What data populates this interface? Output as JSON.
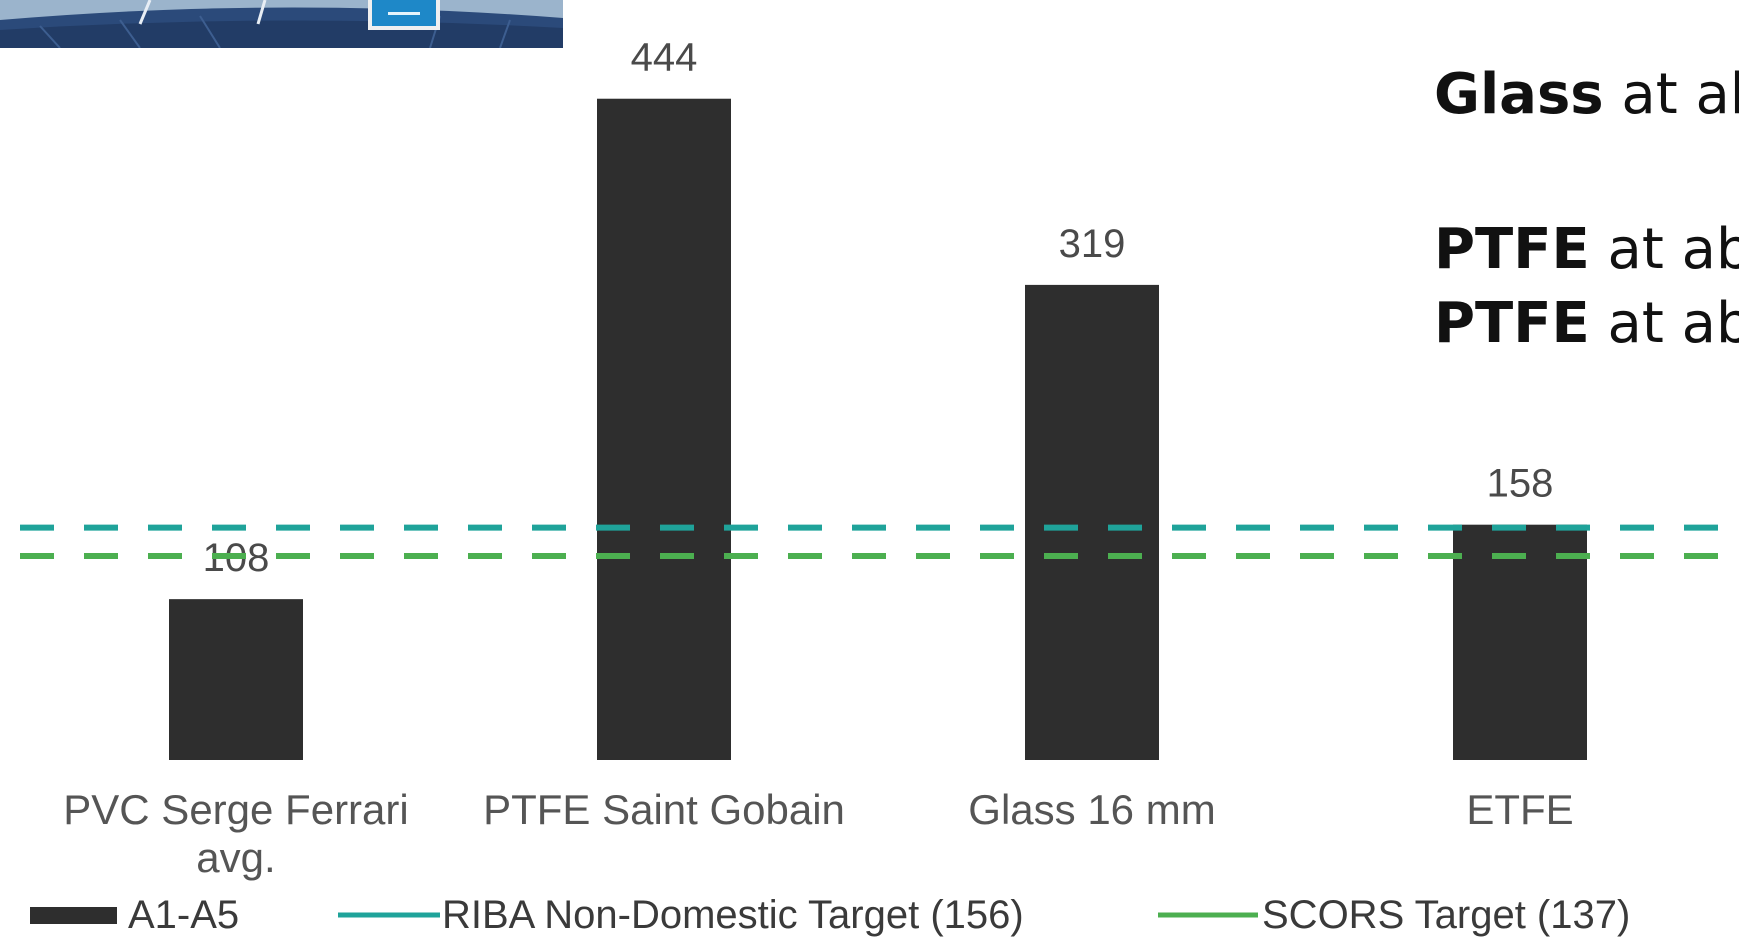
{
  "chart_data": {
    "type": "bar",
    "categories": [
      "PVC Serge Ferrari avg.",
      "PTFE Saint Gobain",
      "Glass 16 mm",
      "ETFE"
    ],
    "category_lines": [
      [
        "PVC Serge Ferrari",
        "avg."
      ],
      [
        "PTFE Saint Gobain"
      ],
      [
        "Glass 16 mm"
      ],
      [
        "ETFE"
      ]
    ],
    "series": [
      {
        "name": "A1-A5",
        "values": [
          108,
          444,
          319,
          158
        ],
        "color": "#2e2e2e"
      }
    ],
    "data_labels": [
      "108",
      "444",
      "319",
      "158"
    ],
    "reference_lines": [
      {
        "name": "RIBA Non-Domestic Target (156)",
        "value": 156,
        "color": "#1fa39a",
        "style": "dashed"
      },
      {
        "name": "SCORS Target (137)",
        "value": 137,
        "color": "#4caf50",
        "style": "dashed"
      }
    ],
    "ylim": [
      0,
      470
    ],
    "grid": false,
    "legend_position": "bottom",
    "legend": {
      "bar_label": "A1-A5",
      "riba_label": "RIBA Non-Domestic Target (156)",
      "scors_label": "SCORS Target (137)"
    }
  },
  "annotations": {
    "lines": [
      {
        "bold": "Glass",
        "rest": " at ab"
      },
      {
        "bold": "PTFE",
        "rest": " at ab"
      },
      {
        "bold": "PTFE",
        "rest": " at ab"
      }
    ]
  },
  "colors": {
    "photo_sky": "#a9c4dc",
    "photo_seats": "#2b4a7a",
    "photo_screen": "#1e88c8"
  }
}
